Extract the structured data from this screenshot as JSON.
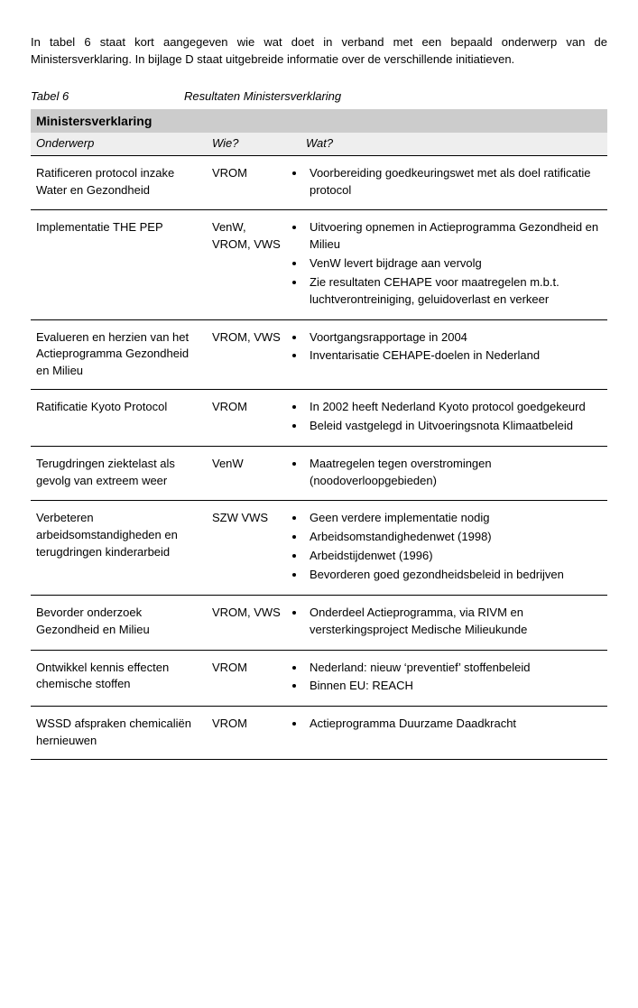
{
  "intro": "In tabel 6 staat kort aangegeven wie wat doet in verband met een bepaald onderwerp van de Ministersverklaring. In bijlage D staat uitgebreide informatie over de verschillende initiatieven.",
  "caption": {
    "left": "Tabel 6",
    "right": "Resultaten Ministersverklaring"
  },
  "table": {
    "title": "Ministersverklaring",
    "headers": {
      "onderwerp": "Onderwerp",
      "wie": "Wie?",
      "wat": "Wat?"
    },
    "rows": [
      {
        "onderwerp": "Ratificeren protocol inzake Water en Gezondheid",
        "wie": "VROM",
        "wat": [
          "Voorbereiding goedkeuringswet met als doel ratificatie protocol"
        ]
      },
      {
        "onderwerp": "Implementatie THE PEP",
        "wie": "VenW, VROM, VWS",
        "wat": [
          "Uitvoering opnemen in Actieprogramma Gezondheid en Milieu",
          "VenW levert bijdrage aan vervolg",
          "Zie resultaten CEHAPE voor maatregelen m.b.t. luchtverontreiniging, geluidoverlast en verkeer"
        ]
      },
      {
        "onderwerp": "Evalueren en herzien van het Actieprogramma Gezondheid en Milieu",
        "wie": "VROM, VWS",
        "wat": [
          "Voortgangsrapportage in 2004",
          "Inventarisatie CEHAPE-doelen in Nederland"
        ]
      },
      {
        "onderwerp": "Ratificatie Kyoto Protocol",
        "wie": "VROM",
        "wat": [
          "In 2002 heeft Nederland Kyoto protocol goedgekeurd",
          "Beleid vastgelegd in Uitvoeringsnota Klimaatbeleid"
        ]
      },
      {
        "onderwerp": "Terugdringen ziektelast als gevolg van extreem weer",
        "wie": "VenW",
        "wat": [
          "Maatregelen tegen overstromingen (noodoverloopgebieden)"
        ]
      },
      {
        "onderwerp": "Verbeteren arbeidsomstandigheden en terugdringen kinderarbeid",
        "wie": "SZW VWS",
        "wat": [
          "Geen verdere implementatie nodig",
          "Arbeidsomstandighedenwet (1998)",
          "Arbeidstijdenwet (1996)",
          "Bevorderen goed gezondheidsbeleid in bedrijven"
        ]
      },
      {
        "onderwerp": "Bevorder onderzoek Gezondheid en Milieu",
        "wie": "VROM, VWS",
        "wat": [
          "Onderdeel Actieprogramma, via RIVM en versterkingsproject Medische Milieukunde"
        ]
      },
      {
        "onderwerp": "Ontwikkel kennis effecten chemische stoffen",
        "wie": "VROM",
        "wat": [
          "Nederland: nieuw ‘preventief’ stoffenbeleid",
          "Binnen EU: REACH"
        ]
      },
      {
        "onderwerp": "WSSD afspraken chemicaliën hernieuwen",
        "wie": "VROM",
        "wat": [
          "Actieprogramma Duurzame Daadkracht"
        ]
      }
    ]
  }
}
